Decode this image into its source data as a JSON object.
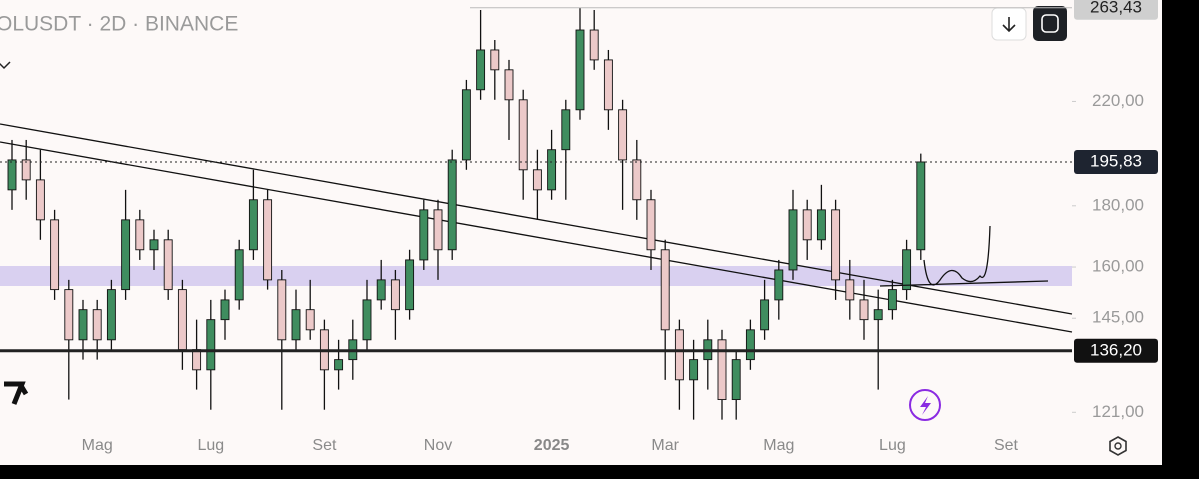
{
  "chart_data": {
    "type": "candlestick",
    "title": "OLUSDT · 2D · BINANCE",
    "log_scale": true,
    "ylim": [
      116.5,
      267.4
    ],
    "yticks": [
      {
        "value": 121,
        "label": "121,00"
      },
      {
        "value": 145,
        "label": "145,00"
      },
      {
        "value": 160,
        "label": "160,00"
      },
      {
        "value": 180,
        "label": "180,00"
      },
      {
        "value": 220,
        "label": "220,00"
      }
    ],
    "categories": [
      null,
      null,
      null,
      null,
      null,
      null,
      "Mag",
      null,
      null,
      null,
      null,
      null,
      null,
      null,
      "Lug",
      null,
      null,
      null,
      null,
      null,
      null,
      null,
      "Set",
      null,
      null,
      null,
      null,
      null,
      null,
      null,
      "Nov",
      null,
      null,
      null,
      null,
      null,
      null,
      null,
      "2025",
      null,
      null,
      null,
      null,
      null,
      null,
      null,
      "Mar",
      null,
      null,
      null,
      null,
      null,
      null,
      null,
      "Mag",
      null,
      null,
      null,
      null,
      null,
      null,
      null,
      "Lug",
      null,
      null,
      null,
      null,
      null,
      null,
      null,
      "Set"
    ],
    "up_color": "#3f8d5f",
    "down_color": "#ecc9c9",
    "ohlc": [
      [
        185.6,
        204.3,
        178.6,
        196.6
      ],
      [
        196.6,
        204.3,
        182.1,
        189.2
      ],
      [
        189.2,
        200.5,
        168.6,
        175.2
      ],
      [
        175.2,
        178.6,
        150.2,
        153.2
      ],
      [
        153.2,
        156.1,
        124.0,
        139.1
      ],
      [
        139.1,
        150.2,
        133.9,
        147.4
      ],
      [
        147.4,
        150.2,
        133.9,
        139.1
      ],
      [
        139.1,
        156.1,
        136.5,
        153.2
      ],
      [
        153.2,
        185.6,
        150.2,
        175.2
      ],
      [
        175.2,
        178.6,
        162.2,
        165.4
      ],
      [
        165.4,
        171.9,
        159.1,
        168.6
      ],
      [
        168.6,
        171.9,
        150.2,
        153.2
      ],
      [
        153.2,
        156.1,
        131.3,
        136.5
      ],
      [
        136.5,
        144.6,
        126.4,
        131.3
      ],
      [
        131.3,
        150.2,
        121.6,
        144.6
      ],
      [
        144.6,
        153.2,
        139.1,
        150.2
      ],
      [
        150.2,
        168.6,
        147.4,
        165.4
      ],
      [
        165.4,
        192.9,
        162.2,
        182.1
      ],
      [
        182.1,
        185.6,
        153.2,
        156.1
      ],
      [
        156.1,
        159.1,
        121.6,
        139.1
      ],
      [
        139.1,
        153.2,
        136.5,
        147.4
      ],
      [
        147.4,
        156.1,
        139.1,
        141.8
      ],
      [
        141.8,
        144.6,
        121.6,
        131.3
      ],
      [
        131.3,
        139.1,
        126.4,
        133.9
      ],
      [
        133.9,
        144.6,
        128.8,
        139.1
      ],
      [
        139.1,
        156.1,
        136.5,
        150.2
      ],
      [
        150.2,
        162.2,
        147.4,
        156.1
      ],
      [
        156.1,
        159.1,
        139.1,
        147.4
      ],
      [
        147.4,
        165.4,
        144.6,
        162.2
      ],
      [
        162.2,
        182.1,
        159.1,
        178.6
      ],
      [
        178.6,
        182.1,
        156.1,
        165.4
      ],
      [
        165.4,
        200.5,
        162.2,
        196.6
      ],
      [
        196.6,
        229.3,
        192.9,
        225.0
      ],
      [
        225.0,
        262.3,
        220.7,
        242.9
      ],
      [
        242.9,
        247.6,
        220.7,
        233.8
      ],
      [
        233.8,
        238.3,
        204.3,
        220.7
      ],
      [
        220.7,
        225.0,
        182.1,
        192.9
      ],
      [
        192.9,
        200.5,
        175.2,
        185.6
      ],
      [
        185.6,
        208.3,
        182.1,
        200.5
      ],
      [
        200.5,
        220.7,
        182.1,
        216.5
      ],
      [
        216.5,
        263.4,
        212.4,
        252.4
      ],
      [
        252.4,
        262.3,
        233.8,
        238.3
      ],
      [
        238.3,
        242.9,
        208.3,
        216.5
      ],
      [
        216.5,
        220.7,
        178.6,
        196.6
      ],
      [
        196.6,
        204.3,
        175.2,
        182.1
      ],
      [
        182.1,
        185.6,
        159.1,
        165.4
      ],
      [
        165.4,
        168.6,
        128.8,
        141.8
      ],
      [
        141.8,
        144.6,
        121.6,
        128.8
      ],
      [
        128.8,
        139.1,
        119.3,
        133.9
      ],
      [
        133.9,
        144.6,
        126.4,
        139.1
      ],
      [
        139.1,
        141.8,
        119.3,
        124.0
      ],
      [
        124.0,
        136.5,
        119.3,
        133.9
      ],
      [
        133.9,
        144.6,
        131.3,
        141.8
      ],
      [
        141.8,
        156.1,
        139.1,
        150.2
      ],
      [
        150.2,
        162.2,
        144.6,
        159.1
      ],
      [
        159.1,
        185.6,
        156.1,
        178.6
      ],
      [
        178.6,
        182.1,
        162.2,
        168.6
      ],
      [
        168.6,
        187.4,
        165.4,
        178.6
      ],
      [
        178.6,
        182.1,
        150.2,
        156.1
      ],
      [
        156.1,
        162.2,
        144.6,
        150.2
      ],
      [
        150.2,
        156.1,
        139.1,
        144.6
      ],
      [
        144.6,
        153.2,
        126.4,
        147.4
      ],
      [
        147.4,
        156.1,
        144.6,
        153.2
      ],
      [
        153.2,
        168.6,
        150.2,
        165.4
      ],
      [
        165.4,
        199.0,
        162.2,
        195.83
      ],
      null,
      null,
      null,
      null,
      null,
      null
    ],
    "price_lines": [
      {
        "value": 263.43,
        "label": "263,43",
        "style": "dashed",
        "color": "#cfcfcf",
        "text_color": "#222"
      },
      {
        "value": 195.83,
        "label": "195,83",
        "style": "dotted",
        "color": "#1e2430",
        "text_color": "#fff"
      },
      {
        "value": 136.2,
        "label": "136,20",
        "style": "solid",
        "color": "#111",
        "text_color": "#fff"
      }
    ]
  }
}
